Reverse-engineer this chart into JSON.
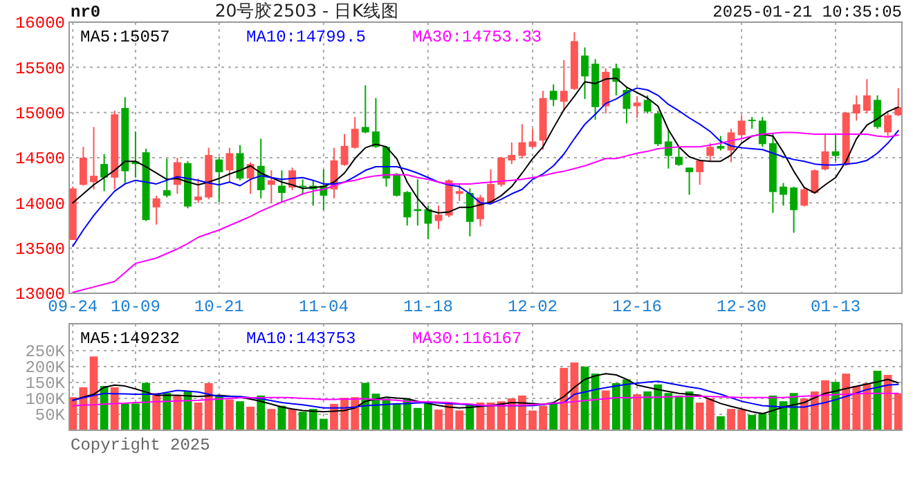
{
  "chart_data": [
    {
      "type": "candlestick",
      "title": "20号胶2503 - 日K线图",
      "annotations": [
        "nr0",
        "2025-01-21 10:35:05"
      ],
      "categories": [
        "09-24",
        null,
        null,
        null,
        null,
        null,
        "10-09",
        null,
        null,
        null,
        null,
        null,
        null,
        null,
        "10-21",
        null,
        null,
        null,
        null,
        null,
        null,
        null,
        null,
        null,
        "11-04",
        null,
        null,
        null,
        null,
        null,
        null,
        null,
        null,
        null,
        "11-18",
        null,
        null,
        null,
        null,
        null,
        null,
        null,
        null,
        null,
        "12-02",
        null,
        null,
        null,
        null,
        null,
        null,
        null,
        null,
        null,
        "12-16",
        null,
        null,
        null,
        null,
        null,
        null,
        null,
        null,
        null,
        "12-30",
        null,
        null,
        null,
        null,
        null,
        null,
        null,
        null,
        "01-13",
        null,
        null,
        null,
        null,
        null,
        null
      ],
      "ohlc": [
        [
          13590,
          14180,
          13590,
          14160
        ],
        [
          14200,
          14620,
          14190,
          14500
        ],
        [
          14230,
          14840,
          14150,
          14300
        ],
        [
          14430,
          14540,
          14130,
          14280
        ],
        [
          14280,
          15020,
          14150,
          14980
        ],
        [
          15050,
          15170,
          14210,
          14350
        ],
        [
          14460,
          14790,
          14280,
          14430
        ],
        [
          14560,
          14600,
          13800,
          13810
        ],
        [
          13950,
          14080,
          13760,
          14050
        ],
        [
          14140,
          14490,
          14060,
          14080
        ],
        [
          14200,
          14500,
          14100,
          14450
        ],
        [
          14440,
          14460,
          13940,
          13960
        ],
        [
          14030,
          14270,
          14000,
          14070
        ],
        [
          14060,
          14610,
          14040,
          14530
        ],
        [
          14480,
          14510,
          14010,
          14340
        ],
        [
          14360,
          14610,
          14230,
          14550
        ],
        [
          14550,
          14640,
          14250,
          14270
        ],
        [
          14270,
          14450,
          14100,
          14430
        ],
        [
          14410,
          14710,
          14050,
          14140
        ],
        [
          14200,
          14360,
          14000,
          14250
        ],
        [
          14190,
          14360,
          14000,
          14110
        ],
        [
          14170,
          14390,
          14140,
          14360
        ],
        [
          14190,
          14260,
          14090,
          14180
        ],
        [
          14190,
          14250,
          13970,
          14150
        ],
        [
          14190,
          14370,
          13920,
          14080
        ],
        [
          14150,
          14610,
          14050,
          14470
        ],
        [
          14420,
          14760,
          14410,
          14630
        ],
        [
          14610,
          14950,
          14600,
          14820
        ],
        [
          14840,
          15300,
          14770,
          14780
        ],
        [
          14790,
          15160,
          14610,
          14620
        ],
        [
          14620,
          14630,
          14180,
          14270
        ],
        [
          14320,
          14330,
          14070,
          14080
        ],
        [
          14120,
          14130,
          13750,
          13840
        ],
        [
          13930,
          14260,
          13750,
          13910
        ],
        [
          13930,
          13970,
          13600,
          13770
        ],
        [
          13800,
          13970,
          13710,
          13870
        ],
        [
          13860,
          14260,
          13840,
          14250
        ],
        [
          14100,
          14220,
          14020,
          14130
        ],
        [
          14110,
          14160,
          13630,
          13790
        ],
        [
          13820,
          14090,
          13740,
          14060
        ],
        [
          14000,
          14370,
          13980,
          14210
        ],
        [
          14200,
          14510,
          14180,
          14500
        ],
        [
          14470,
          14670,
          14430,
          14530
        ],
        [
          14520,
          14870,
          14490,
          14670
        ],
        [
          14620,
          14820,
          14610,
          14680
        ],
        [
          14690,
          15240,
          14590,
          15160
        ],
        [
          15240,
          15310,
          15070,
          15140
        ],
        [
          15120,
          15580,
          15020,
          15240
        ],
        [
          15260,
          15890,
          15250,
          15790
        ],
        [
          15630,
          15720,
          15150,
          15400
        ],
        [
          15540,
          15590,
          14920,
          15060
        ],
        [
          15070,
          15490,
          14990,
          15450
        ],
        [
          15490,
          15540,
          15190,
          15340
        ],
        [
          15250,
          15280,
          14880,
          15040
        ],
        [
          15070,
          15180,
          14940,
          15110
        ],
        [
          15140,
          15190,
          14990,
          15010
        ],
        [
          14990,
          15020,
          14630,
          14650
        ],
        [
          14680,
          14810,
          14380,
          14520
        ],
        [
          14510,
          14610,
          14410,
          14420
        ],
        [
          14390,
          14390,
          14090,
          14340
        ],
        [
          14340,
          14480,
          14200,
          14470
        ],
        [
          14520,
          14660,
          14460,
          14620
        ],
        [
          14630,
          14740,
          14580,
          14600
        ],
        [
          14580,
          14820,
          14450,
          14780
        ],
        [
          14750,
          14970,
          14710,
          14910
        ],
        [
          14920,
          14950,
          14820,
          14910
        ],
        [
          14910,
          14950,
          14620,
          14650
        ],
        [
          14660,
          14770,
          13890,
          14120
        ],
        [
          14180,
          14220,
          13970,
          14090
        ],
        [
          14170,
          14180,
          13670,
          13920
        ],
        [
          13970,
          14180,
          13960,
          14150
        ],
        [
          14110,
          14370,
          14100,
          14360
        ],
        [
          14370,
          14770,
          14360,
          14570
        ],
        [
          14570,
          14750,
          14460,
          14520
        ],
        [
          14420,
          15000,
          14410,
          15000
        ],
        [
          14990,
          15190,
          14910,
          15090
        ],
        [
          15020,
          15370,
          14990,
          15190
        ],
        [
          15140,
          15190,
          14820,
          14840
        ],
        [
          14780,
          15000,
          14740,
          14970
        ],
        [
          14970,
          15270,
          14960,
          15060
        ]
      ],
      "colors": [
        "#ff5555",
        "#ff5555",
        "#ff5555",
        "#00a800",
        "#ff5555",
        "#00a800",
        "#00a800",
        "#00a800",
        "#ff5555",
        "#00a800",
        "#ff5555",
        "#00a800",
        "#ff5555",
        "#ff5555",
        "#00a800",
        "#ff5555",
        "#00a800",
        "#ff5555",
        "#00a800",
        "#ff5555",
        "#00a800",
        "#ff5555",
        "#00a800",
        "#00a800",
        "#00a800",
        "#ff5555",
        "#ff5555",
        "#ff5555",
        "#00a800",
        "#00a800",
        "#00a800",
        "#00a800",
        "#00a800",
        "#00a800",
        "#00a800",
        "#ff5555",
        "#ff5555",
        "#ff5555",
        "#00a800",
        "#ff5555",
        "#ff5555",
        "#ff5555",
        "#ff5555",
        "#ff5555",
        "#ff5555",
        "#ff5555",
        "#00a800",
        "#ff5555",
        "#ff5555",
        "#00a800",
        "#00a800",
        "#ff5555",
        "#00a800",
        "#00a800",
        "#ff5555",
        "#00a800",
        "#00a800",
        "#00a800",
        "#00a800",
        "#00a800",
        "#ff5555",
        "#ff5555",
        "#00a800",
        "#ff5555",
        "#ff5555",
        "#00a800",
        "#00a800",
        "#00a800",
        "#00a800",
        "#00a800",
        "#ff5555",
        "#ff5555",
        "#ff5555",
        "#00a800",
        "#ff5555",
        "#ff5555",
        "#ff5555",
        "#00a800",
        "#ff5555",
        "#ff5555"
      ],
      "series": [
        {
          "type": "line",
          "name": "MA5:15057",
          "color": "#000000",
          "values": [
            14000,
            14100,
            14200,
            14280,
            14360,
            14460,
            14460,
            14400,
            14330,
            14260,
            14270,
            14230,
            14200,
            14230,
            14270,
            14320,
            14360,
            14410,
            14330,
            14280,
            14230,
            14200,
            14160,
            14170,
            14180,
            14230,
            14330,
            14490,
            14610,
            14650,
            14620,
            14490,
            14230,
            14050,
            13920,
            13890,
            13900,
            13950,
            13950,
            13980,
            14010,
            14080,
            14180,
            14330,
            14490,
            14620,
            14830,
            15030,
            15180,
            15340,
            15320,
            15370,
            15380,
            15280,
            15220,
            15160,
            15070,
            14810,
            14620,
            14510,
            14470,
            14460,
            14460,
            14530,
            14660,
            14740,
            14760,
            14740,
            14560,
            14350,
            14170,
            14110,
            14200,
            14280,
            14460,
            14710,
            14860,
            14930,
            15010,
            15060
          ]
        },
        {
          "type": "line",
          "name": "MA10:14799.5",
          "color": "#0000ff",
          "values": [
            13520,
            13700,
            13860,
            14000,
            14130,
            14210,
            14250,
            14230,
            14210,
            14250,
            14290,
            14270,
            14250,
            14220,
            14200,
            14230,
            14190,
            14260,
            14300,
            14280,
            14260,
            14270,
            14280,
            14250,
            14210,
            14210,
            14230,
            14290,
            14360,
            14400,
            14400,
            14400,
            14370,
            14330,
            14280,
            14230,
            14200,
            14180,
            14100,
            14000,
            13990,
            14040,
            14100,
            14150,
            14260,
            14320,
            14410,
            14540,
            14710,
            14870,
            14980,
            15100,
            15150,
            15220,
            15270,
            15250,
            15190,
            15090,
            15020,
            14940,
            14870,
            14790,
            14680,
            14630,
            14610,
            14600,
            14590,
            14550,
            14510,
            14480,
            14460,
            14430,
            14420,
            14420,
            14430,
            14440,
            14470,
            14550,
            14660,
            14800
          ]
        },
        {
          "type": "line",
          "name": "MA30:14753.33",
          "color": "#ff00ff",
          "values": [
            13010,
            13040,
            13070,
            13100,
            13130,
            13230,
            13330,
            13360,
            13390,
            13440,
            13490,
            13550,
            13620,
            13660,
            13700,
            13750,
            13800,
            13850,
            13910,
            13960,
            14010,
            14050,
            14100,
            14130,
            14150,
            14190,
            14230,
            14250,
            14280,
            14300,
            14310,
            14310,
            14310,
            14280,
            14260,
            14230,
            14210,
            14210,
            14210,
            14220,
            14230,
            14240,
            14250,
            14260,
            14280,
            14300,
            14330,
            14350,
            14380,
            14410,
            14450,
            14490,
            14490,
            14520,
            14550,
            14570,
            14600,
            14610,
            14620,
            14620,
            14620,
            14640,
            14660,
            14690,
            14710,
            14740,
            14760,
            14770,
            14780,
            14780,
            14770,
            14760,
            14760,
            14760,
            14760,
            14760,
            14760,
            14740,
            14730,
            14750
          ]
        }
      ],
      "ylim": [
        13000,
        16000
      ],
      "yticks": [
        13000,
        13500,
        14000,
        14500,
        15000,
        15500,
        16000
      ],
      "grid": true,
      "legend": "top"
    },
    {
      "type": "bar",
      "annotations": [
        "Copyright 2025"
      ],
      "categories": [
        null,
        null,
        null,
        null,
        null,
        null,
        null,
        null,
        null,
        null,
        null,
        null,
        null,
        null,
        null,
        null,
        null,
        null,
        null,
        null,
        null,
        null,
        null,
        null,
        null,
        null,
        null,
        null,
        null,
        null,
        null,
        null,
        null,
        null,
        null,
        null,
        null,
        null,
        null,
        null,
        null,
        null,
        null,
        null,
        null,
        null,
        null,
        null,
        null,
        null,
        null,
        null,
        null,
        null,
        null,
        null,
        null,
        null,
        null,
        null,
        null,
        null,
        null,
        null,
        null,
        null,
        null,
        null,
        null,
        null,
        null,
        null,
        null,
        null,
        null,
        null,
        null,
        null,
        null,
        null
      ],
      "values": [
        104000,
        135000,
        232000,
        139000,
        135000,
        84000,
        84000,
        149000,
        117000,
        117000,
        110000,
        122000,
        87000,
        148000,
        109000,
        97000,
        91000,
        74000,
        109000,
        67000,
        77000,
        67000,
        58000,
        67000,
        36000,
        83000,
        102000,
        104000,
        149000,
        115000,
        99000,
        84000,
        99000,
        70000,
        84000,
        65000,
        87000,
        62000,
        80000,
        87000,
        87000,
        91000,
        100000,
        109000,
        62000,
        77000,
        87000,
        196000,
        213000,
        200000,
        178000,
        125000,
        148000,
        160000,
        113000,
        122000,
        144000,
        117000,
        109000,
        122000,
        87000,
        100000,
        44000,
        67000,
        65000,
        48000,
        55000,
        109000,
        91000,
        117000,
        100000,
        122000,
        157000,
        152000,
        178000,
        139000,
        148000,
        187000,
        174000,
        116000
      ],
      "colors": [
        "#ff5555",
        "#ff5555",
        "#ff5555",
        "#00a800",
        "#ff5555",
        "#00a800",
        "#00a800",
        "#00a800",
        "#ff5555",
        "#00a800",
        "#ff5555",
        "#00a800",
        "#ff5555",
        "#ff5555",
        "#00a800",
        "#ff5555",
        "#00a800",
        "#ff5555",
        "#00a800",
        "#ff5555",
        "#00a800",
        "#ff5555",
        "#00a800",
        "#00a800",
        "#00a800",
        "#ff5555",
        "#ff5555",
        "#ff5555",
        "#00a800",
        "#00a800",
        "#00a800",
        "#00a800",
        "#00a800",
        "#00a800",
        "#00a800",
        "#ff5555",
        "#ff5555",
        "#ff5555",
        "#00a800",
        "#ff5555",
        "#ff5555",
        "#ff5555",
        "#ff5555",
        "#ff5555",
        "#ff5555",
        "#ff5555",
        "#00a800",
        "#ff5555",
        "#ff5555",
        "#00a800",
        "#00a800",
        "#ff5555",
        "#00a800",
        "#00a800",
        "#ff5555",
        "#00a800",
        "#00a800",
        "#00a800",
        "#00a800",
        "#00a800",
        "#ff5555",
        "#ff5555",
        "#00a800",
        "#ff5555",
        "#ff5555",
        "#00a800",
        "#00a800",
        "#00a800",
        "#00a800",
        "#00a800",
        "#ff5555",
        "#ff5555",
        "#ff5555",
        "#00a800",
        "#ff5555",
        "#ff5555",
        "#ff5555",
        "#00a800",
        "#ff5555",
        "#ff5555"
      ],
      "series": [
        {
          "type": "line",
          "name": "MA5:149232",
          "color": "#000000",
          "values": [
            94000,
            104000,
            113000,
            135000,
            142000,
            139000,
            130000,
            120000,
            110000,
            110000,
            110000,
            108000,
            106000,
            108000,
            110000,
            107000,
            104000,
            98000,
            91000,
            82000,
            73000,
            67000,
            62000,
            60000,
            58000,
            60000,
            62000,
            70000,
            91000,
            98000,
            104000,
            101000,
            99000,
            91000,
            84000,
            78000,
            73000,
            70000,
            72000,
            75000,
            77000,
            82000,
            87000,
            86000,
            84000,
            81000,
            87000,
            106000,
            135000,
            160000,
            171000,
            178000,
            174000,
            160000,
            142000,
            135000,
            128000,
            122000,
            116000,
            113000,
            110000,
            97000,
            84000,
            75000,
            67000,
            58000,
            52000,
            62000,
            73000,
            80000,
            87000,
            102000,
            116000,
            123000,
            131000,
            138000,
            145000,
            152000,
            160000,
            149000
          ]
        },
        {
          "type": "line",
          "name": "MA10:143753",
          "color": "#0000ff",
          "values": [
            94000,
            102000,
            109000,
            116000,
            115000,
            114000,
            113000,
            113000,
            113000,
            119000,
            125000,
            123000,
            120000,
            113000,
            106000,
            106000,
            106000,
            102000,
            99000,
            93000,
            87000,
            83000,
            80000,
            75000,
            70000,
            70000,
            70000,
            73000,
            77000,
            79000,
            81000,
            83000,
            84000,
            86000,
            87000,
            86000,
            84000,
            82000,
            80000,
            78000,
            77000,
            77000,
            77000,
            77000,
            77000,
            81000,
            84000,
            87000,
            113000,
            120000,
            128000,
            134000,
            139000,
            144000,
            148000,
            151000,
            154000,
            148000,
            142000,
            136000,
            131000,
            122000,
            113000,
            102000,
            91000,
            84000,
            77000,
            75000,
            73000,
            73000,
            73000,
            80000,
            87000,
            96000,
            106000,
            117000,
            128000,
            135000,
            142000,
            144000
          ]
        },
        {
          "type": "line",
          "name": "MA30:116167",
          "color": "#ff00ff",
          "values": [
            77000,
            79000,
            80000,
            82000,
            84000,
            85000,
            87000,
            88000,
            90000,
            91000,
            92000,
            93000,
            94000,
            96000,
            98000,
            100000,
            102000,
            102000,
            102000,
            103000,
            103000,
            102000,
            100000,
            99000,
            97000,
            97000,
            98000,
            98000,
            99000,
            97000,
            96000,
            94000,
            91000,
            90000,
            89000,
            88000,
            87000,
            84000,
            82000,
            79000,
            77000,
            78000,
            78000,
            79000,
            80000,
            82000,
            85000,
            87000,
            90000,
            93000,
            96000,
            99000,
            102000,
            102000,
            103000,
            104000,
            104000,
            105000,
            106000,
            106000,
            107000,
            106000,
            105000,
            104000,
            103000,
            103000,
            103000,
            103000,
            103000,
            105000,
            107000,
            108000,
            110000,
            112000,
            113000,
            115000,
            116000,
            116000,
            116000,
            116000
          ]
        }
      ],
      "ylim": [
        0,
        335000
      ],
      "yticks": [
        {
          "value": 50000,
          "label": "50K"
        },
        {
          "value": 100000,
          "label": "100K"
        },
        {
          "value": 150000,
          "label": "150K"
        },
        {
          "value": 200000,
          "label": "200K"
        },
        {
          "value": 250000,
          "label": "250K"
        }
      ],
      "grid": true,
      "legend": "top",
      "tick_labels": "y"
    }
  ]
}
